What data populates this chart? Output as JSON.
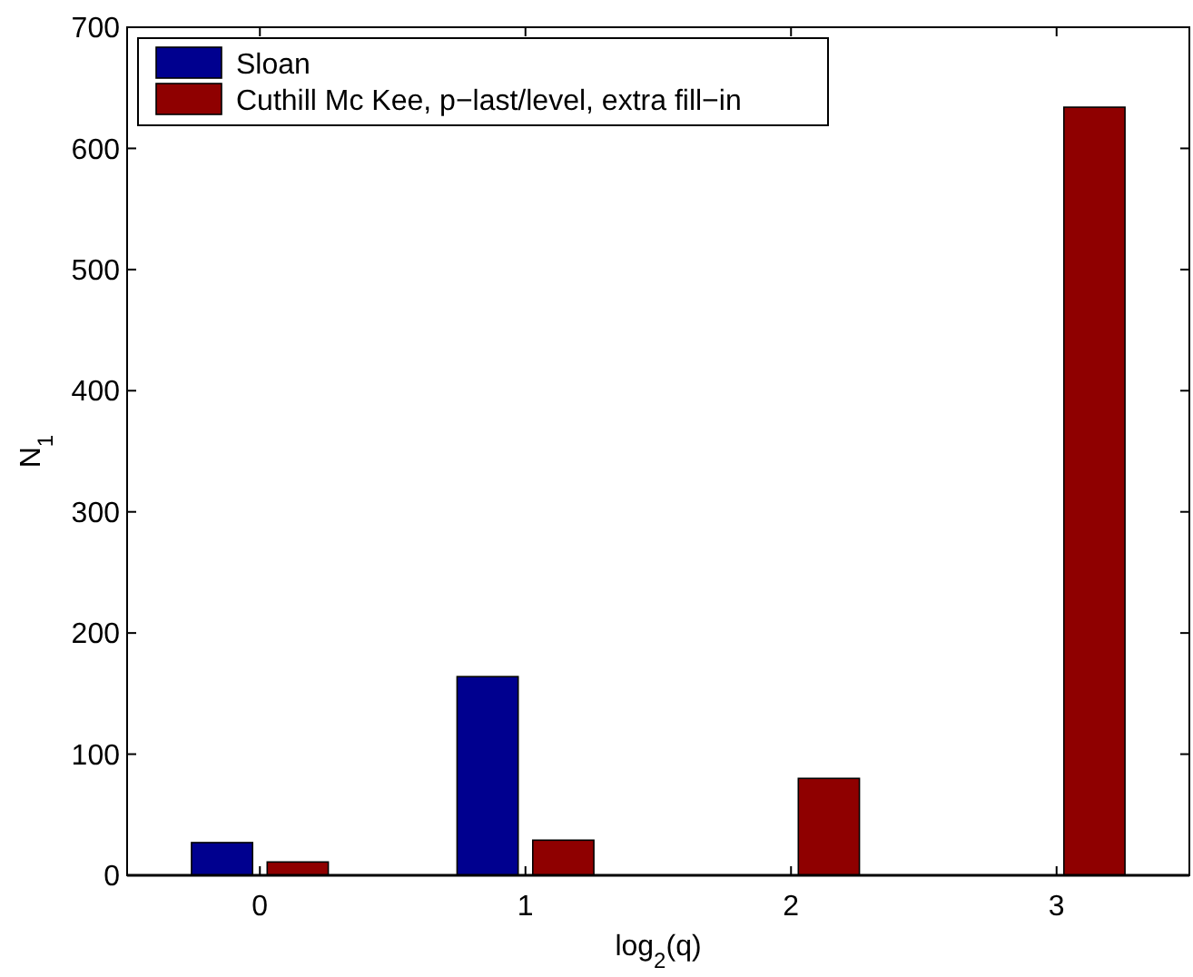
{
  "chart_data": {
    "type": "bar",
    "xlabel": "log$_{2}$(q)",
    "ylabel": "N$_{1}$",
    "categories": [
      "0",
      "1",
      "2",
      "3"
    ],
    "series": [
      {
        "name": "Sloan",
        "color": "#00008f",
        "values": [
          27,
          164,
          0,
          0
        ]
      },
      {
        "name": "Cuthill Mc Kee, p−last/level, extra fill−in",
        "color": "#8f0000",
        "values": [
          11,
          29,
          80,
          634
        ]
      }
    ],
    "ylim": [
      0,
      700
    ],
    "yticks": [
      0,
      100,
      200,
      300,
      400,
      500,
      600,
      700
    ],
    "grid": false,
    "legend": "top left"
  }
}
